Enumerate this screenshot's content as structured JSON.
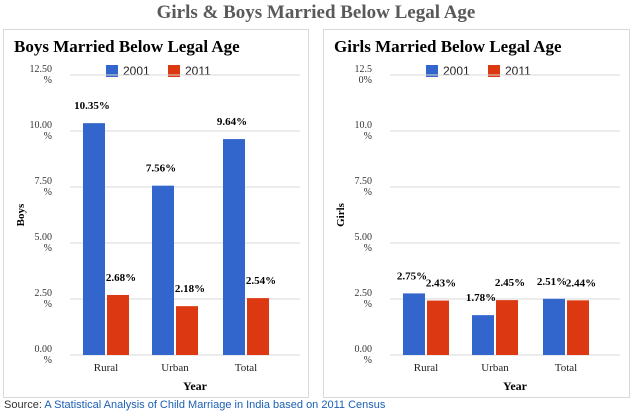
{
  "title": "Girls & Boys Married Below Legal Age",
  "source": {
    "prefix": "Source:",
    "link_text": "A Statistical Analysis of Child Marriage in India based on 2011 Census"
  },
  "colors": {
    "series_2001": "#3366cc",
    "series_2011": "#dc3912",
    "grid": "#d9d9d9",
    "text": "#222222"
  },
  "chart_data": [
    {
      "type": "bar",
      "title": "Boys Married Below Legal Age",
      "xlabel": "Year",
      "ylabel": "Boys",
      "categories": [
        "Rural",
        "Urban",
        "Total"
      ],
      "series": [
        {
          "name": "2001",
          "values": [
            10.35,
            7.56,
            9.64
          ],
          "labels": [
            "10.35%",
            "7.56%",
            "9.64%"
          ]
        },
        {
          "name": "2011",
          "values": [
            2.68,
            2.18,
            2.54
          ],
          "labels": [
            "2.68%",
            "2.18%",
            "2.54%"
          ]
        }
      ],
      "ylim": [
        0,
        12.5
      ],
      "yticks": [
        0,
        2.5,
        5,
        7.5,
        10,
        12.5
      ],
      "ytick_labels": [
        "0.00 %",
        "2.50 %",
        "5.00 %",
        "7.50 %",
        "10.00 %",
        "12.50 %"
      ],
      "legend_position": "top",
      "grid": true
    },
    {
      "type": "bar",
      "title": "Girls Married Below Legal Age",
      "xlabel": "Year",
      "ylabel": "Girls",
      "categories": [
        "Rural",
        "Urban",
        "Total"
      ],
      "series": [
        {
          "name": "2001",
          "values": [
            2.75,
            1.78,
            2.51
          ],
          "labels": [
            "2.75%",
            "1.78%",
            "2.51%"
          ]
        },
        {
          "name": "2011",
          "values": [
            2.43,
            2.45,
            2.44
          ],
          "labels": [
            "2.43%",
            "2.45%",
            "2.44%"
          ]
        }
      ],
      "ylim": [
        0,
        12.5
      ],
      "yticks": [
        0,
        2.5,
        5,
        7.5,
        10,
        12.5
      ],
      "ytick_labels": [
        "0.00 %",
        "2.50 %",
        "5.00 %",
        "7.50 %",
        "10.0 %",
        "12.5 0%"
      ],
      "legend_position": "top",
      "grid": true
    }
  ]
}
